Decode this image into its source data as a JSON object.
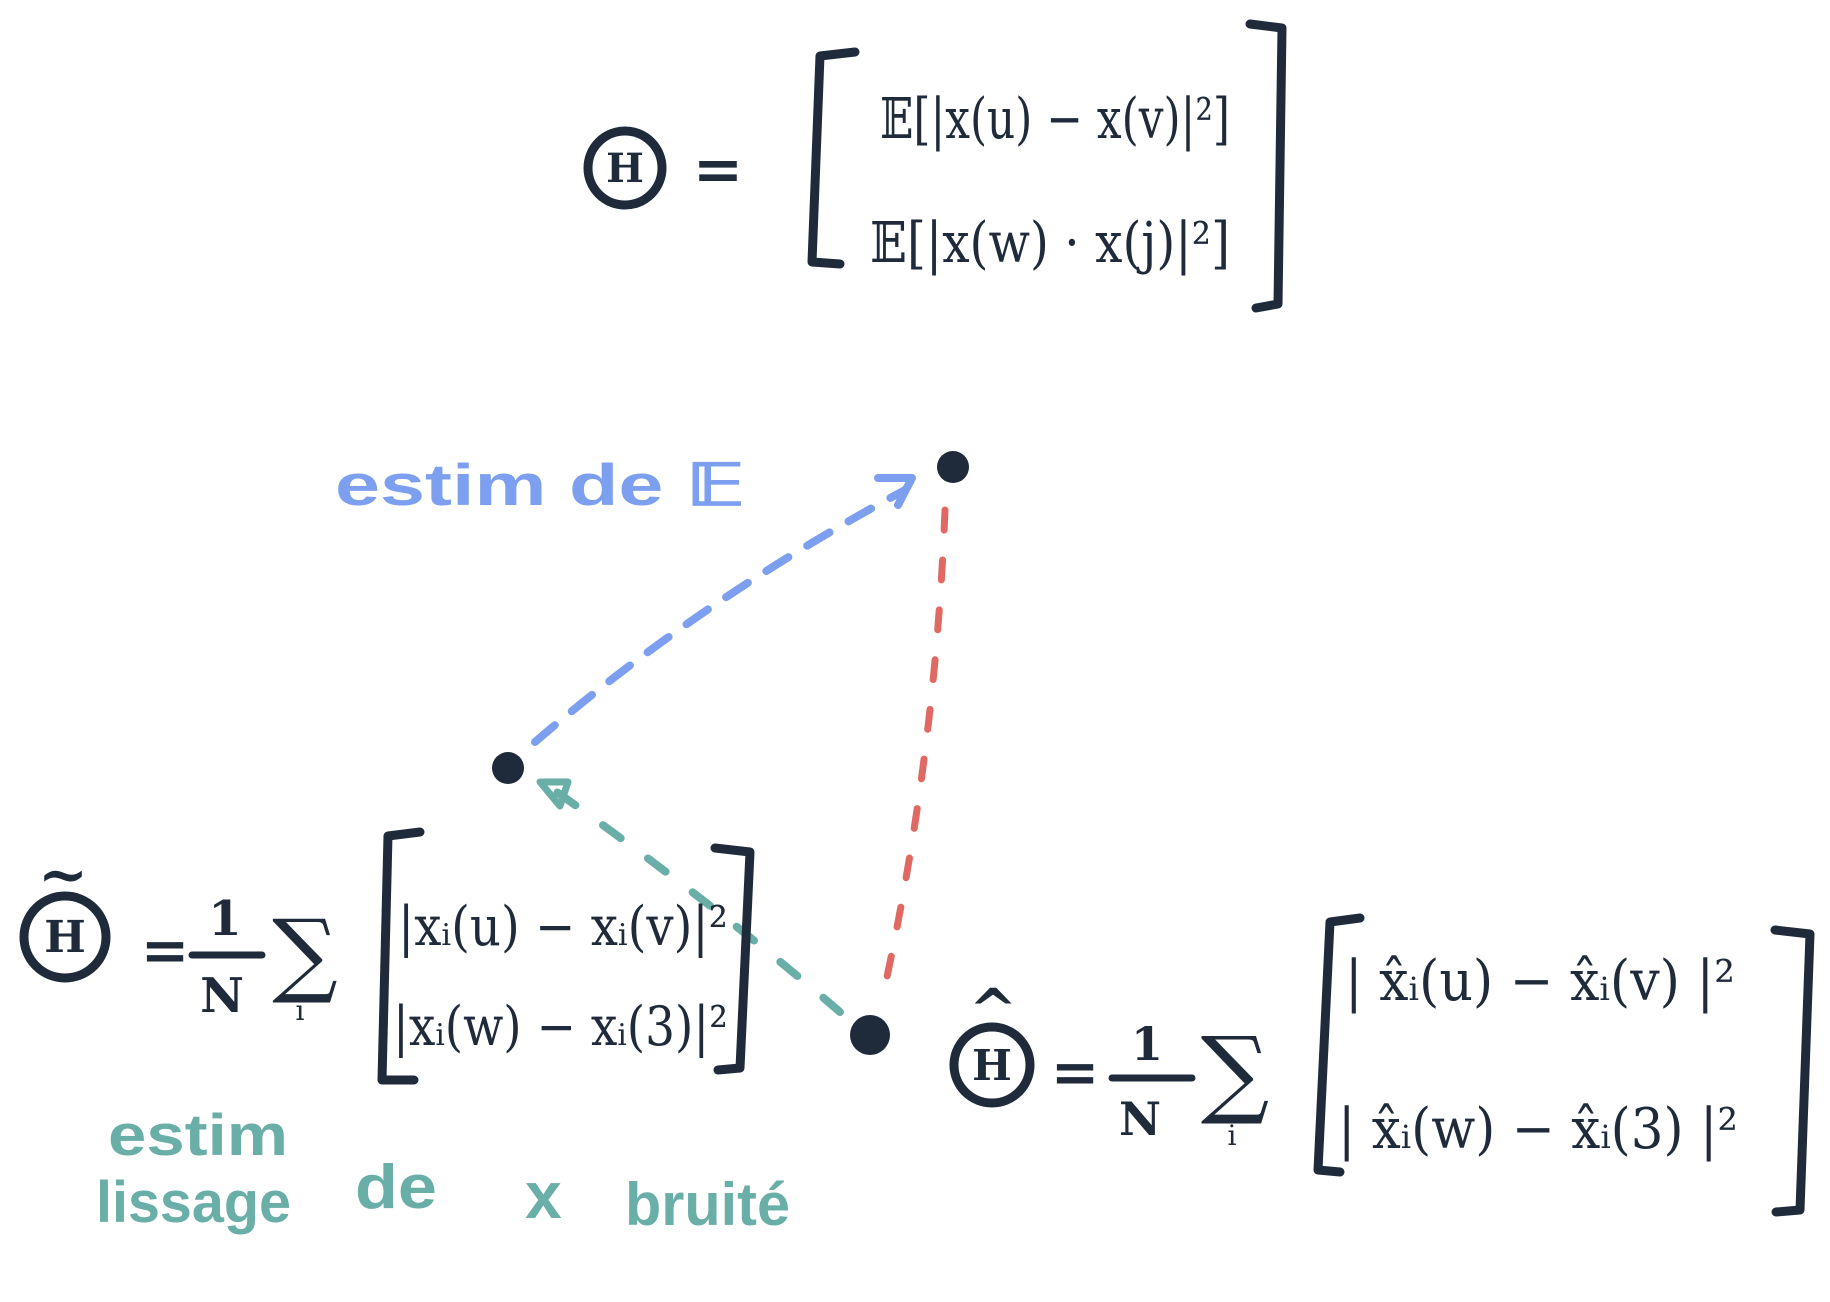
{
  "colors": {
    "ink": "#1f2a3a",
    "blue": "#7c9ff0",
    "teal": "#6aaea8",
    "red": "#e06a63"
  },
  "top_equation": {
    "theta": "H",
    "equals": "=",
    "row1": "𝔼[|x(u) − x(v)|²]",
    "row2": "𝔼[|x(w) · x(j)|²]"
  },
  "tilde_equation": {
    "theta": "H",
    "accent": "~",
    "equals": "=",
    "frac_num": "1",
    "frac_den": "N",
    "sigma": "∑",
    "sub": "i",
    "row1": "|xᵢ(u) − xᵢ(v)|²",
    "row2": "|xᵢ(w) − xᵢ(3)|²"
  },
  "hat_equation": {
    "theta": "H",
    "accent": "^",
    "equals": "=",
    "frac_num": "1",
    "frac_den": "N",
    "sigma": "∑",
    "sub": "i",
    "row1": "| x̂ᵢ(u) − x̂ᵢ(v) |²",
    "row2": "| x̂ᵢ(w) − x̂ᵢ(3) |²"
  },
  "annotations": {
    "blue": "estim de 𝔼",
    "teal_line1": "estim",
    "teal_line2": "lissage",
    "teal_de": "de",
    "teal_x": "x",
    "teal_bruite": "bruité"
  }
}
